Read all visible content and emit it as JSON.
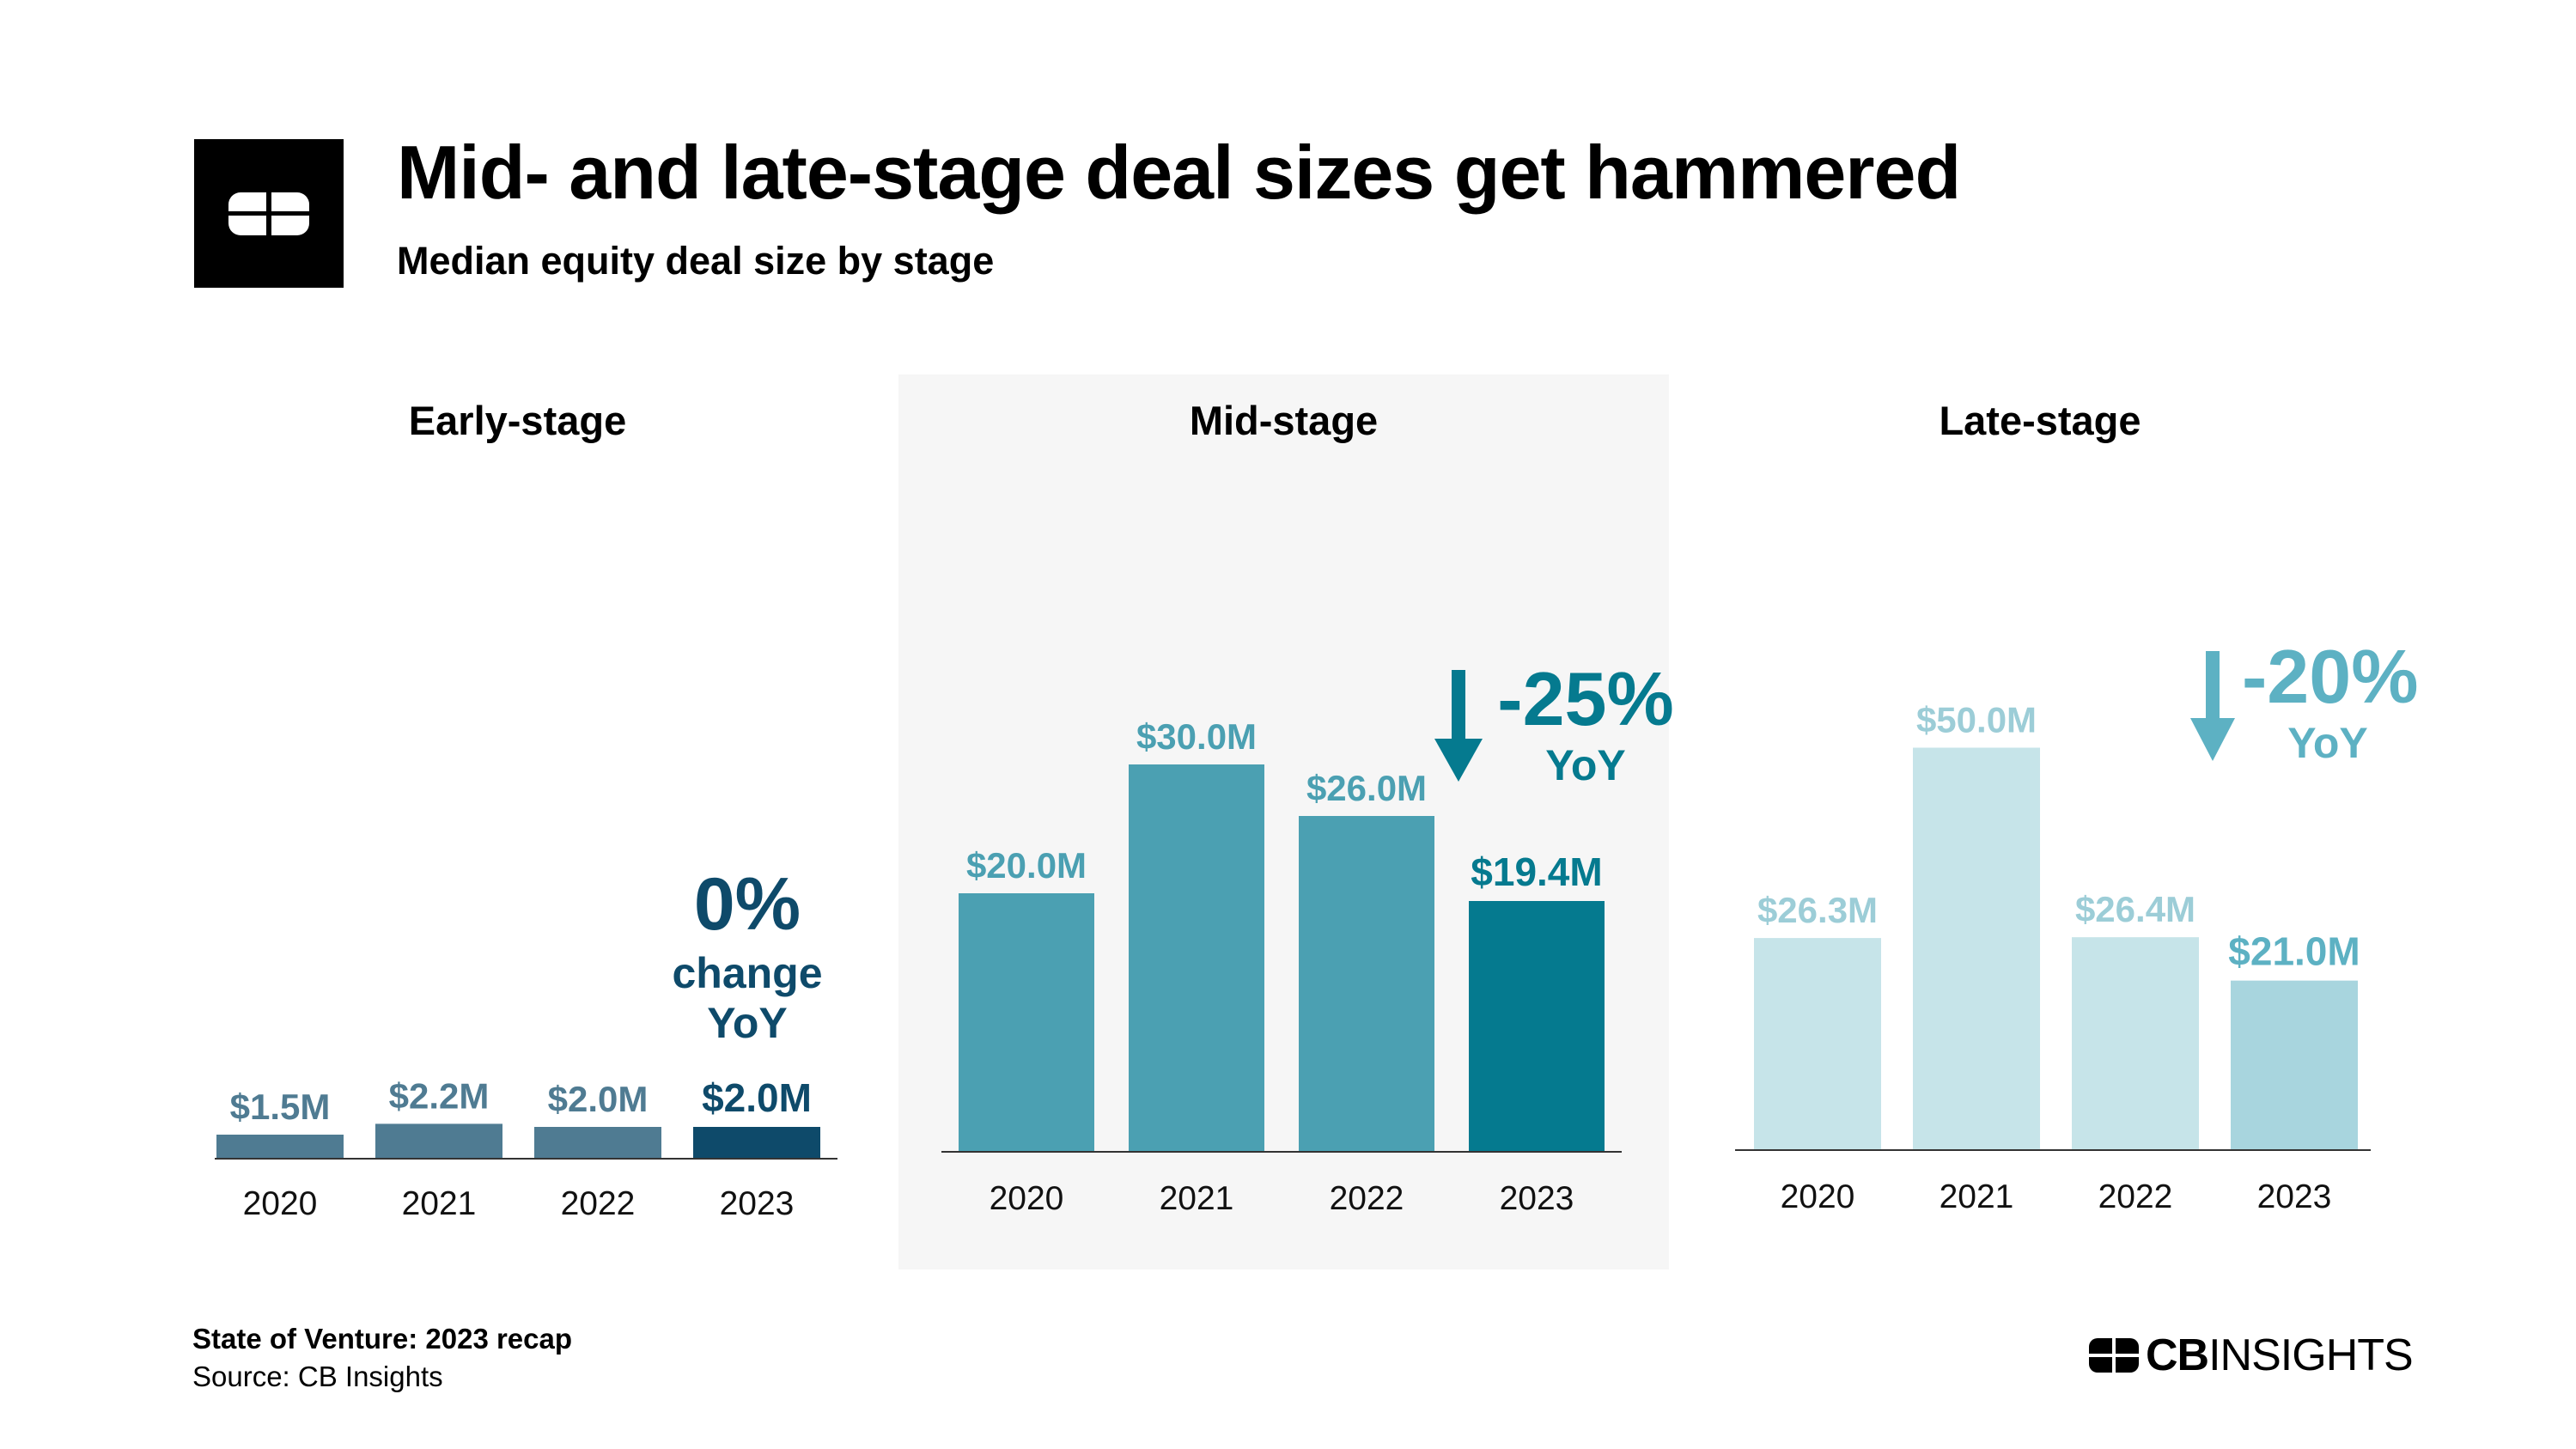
{
  "header": {
    "title": "Mid- and late-stage deal sizes get hammered",
    "subtitle": "Median equity deal size by stage"
  },
  "footer": {
    "report": "State of Venture: 2023 recap",
    "source": "Source: CB Insights"
  },
  "brand": {
    "bold": "CB",
    "regular": "INSIGHTS"
  },
  "chart_data": [
    {
      "type": "bar",
      "title": "Early-stage",
      "categories": [
        "2020",
        "2021",
        "2022",
        "2023"
      ],
      "values": [
        1.5,
        2.2,
        2.0,
        2.0
      ],
      "labels": [
        "$1.5M",
        "$2.2M",
        "$2.0M",
        "$2.0M"
      ],
      "colors": [
        "#4f7b92",
        "#4f7b92",
        "#4f7b92",
        "#0e4a6a"
      ],
      "label_colors": [
        "#4f7b92",
        "#4f7b92",
        "#4f7b92",
        "#0e4a6a"
      ],
      "annotation": {
        "pct": "0%",
        "text1": "change",
        "text2": "YoY",
        "color": "#0e4a6a"
      }
    },
    {
      "type": "bar",
      "title": "Mid-stage",
      "categories": [
        "2020",
        "2021",
        "2022",
        "2023"
      ],
      "values": [
        20.0,
        30.0,
        26.0,
        19.4
      ],
      "labels": [
        "$20.0M",
        "$30.0M",
        "$26.0M",
        "$19.4M"
      ],
      "colors": [
        "#4ba0b2",
        "#4ba0b2",
        "#4ba0b2",
        "#057a8f"
      ],
      "label_colors": [
        "#4ba0b2",
        "#4ba0b2",
        "#4ba0b2",
        "#057a8f"
      ],
      "annotation": {
        "pct": "-25%",
        "text2": "YoY",
        "color": "#057a8f",
        "direction": "down"
      }
    },
    {
      "type": "bar",
      "title": "Late-stage",
      "categories": [
        "2020",
        "2021",
        "2022",
        "2023"
      ],
      "values": [
        26.3,
        50.0,
        26.4,
        21.0
      ],
      "labels": [
        "$26.3M",
        "$50.0M",
        "$26.4M",
        "$21.0M"
      ],
      "colors": [
        "#c6e4e9",
        "#c6e4e9",
        "#c6e4e9",
        "#a8d5de"
      ],
      "label_colors": [
        "#9ccdd7",
        "#9ccdd7",
        "#9ccdd7",
        "#5db1c3"
      ],
      "annotation": {
        "pct": "-20%",
        "text2": "YoY",
        "color": "#5db1c3",
        "direction": "down"
      }
    }
  ]
}
